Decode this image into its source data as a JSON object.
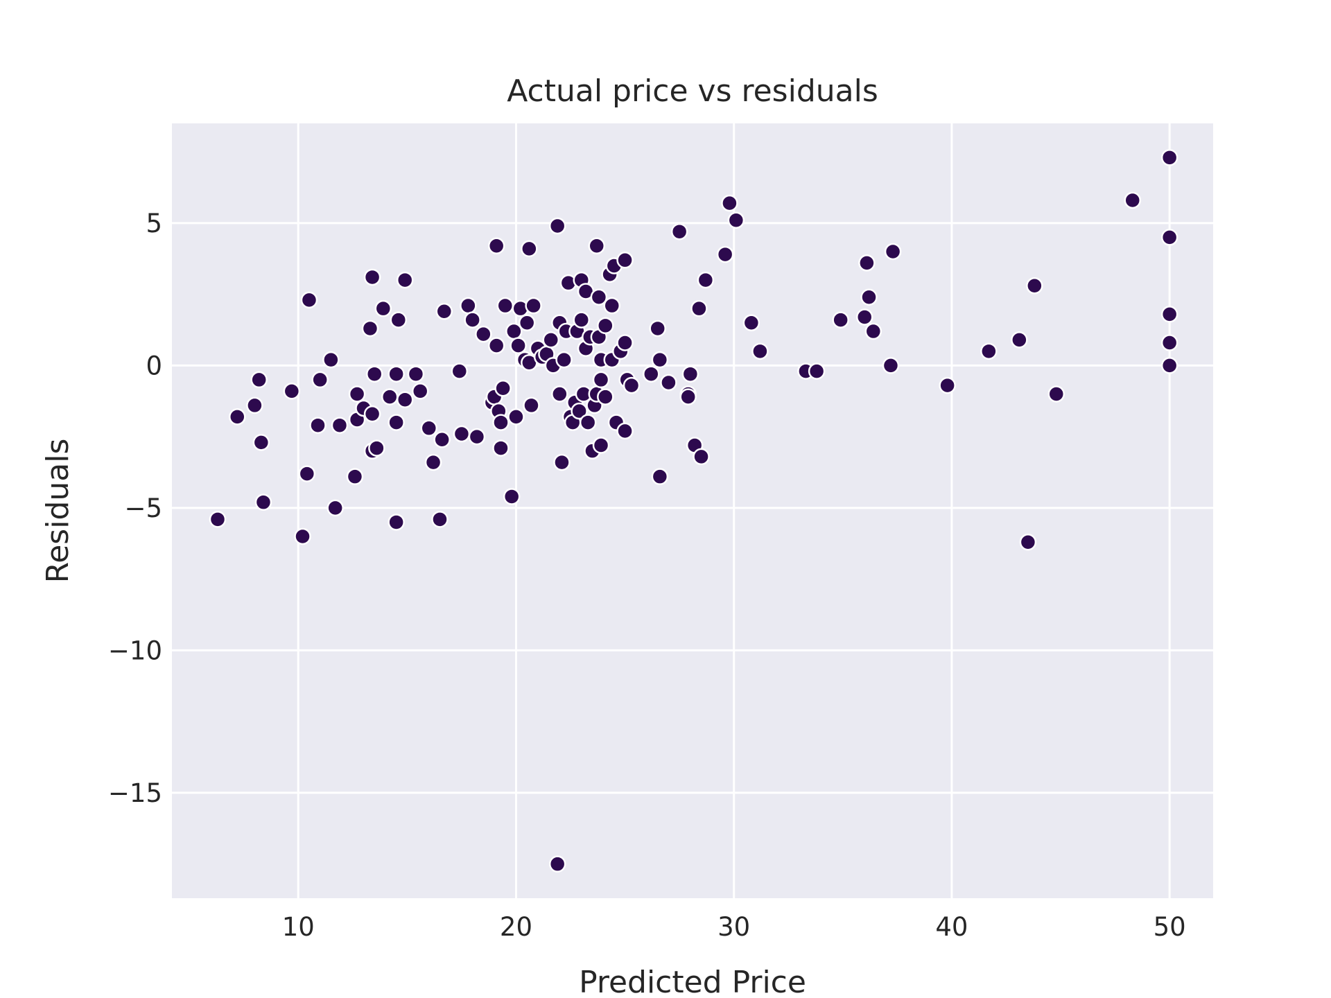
{
  "chart_data": {
    "type": "scatter",
    "title": "Actual price vs residuals",
    "xlabel": "Predicted Price",
    "ylabel": "Residuals",
    "xlim": [
      4.2,
      52.0
    ],
    "ylim": [
      -18.7,
      8.5
    ],
    "xticks": [
      10,
      20,
      30,
      40,
      50
    ],
    "xtick_labels": [
      "10",
      "20",
      "30",
      "40",
      "50"
    ],
    "yticks": [
      5,
      0,
      -5,
      -10,
      -15
    ],
    "ytick_labels": [
      "5",
      "0",
      "−5",
      "−10",
      "−15"
    ],
    "grid": true,
    "colors": {
      "background": "#eaeaf2",
      "grid": "#ffffff",
      "point_fill": "#2d0a4e",
      "point_edge": "#ffffff",
      "text": "#262626"
    },
    "points": [
      [
        6.3,
        -5.4
      ],
      [
        7.2,
        -1.8
      ],
      [
        8.0,
        -1.4
      ],
      [
        8.2,
        -0.5
      ],
      [
        8.3,
        -2.7
      ],
      [
        8.4,
        -4.8
      ],
      [
        9.7,
        -0.9
      ],
      [
        10.2,
        -6.0
      ],
      [
        10.4,
        -3.8
      ],
      [
        10.5,
        2.3
      ],
      [
        10.9,
        -2.1
      ],
      [
        11.0,
        -0.5
      ],
      [
        11.5,
        0.2
      ],
      [
        11.7,
        -5.0
      ],
      [
        11.9,
        -2.1
      ],
      [
        12.6,
        -3.9
      ],
      [
        12.7,
        -1.0
      ],
      [
        12.7,
        -1.9
      ],
      [
        13.0,
        -1.5
      ],
      [
        13.3,
        1.3
      ],
      [
        13.4,
        -1.7
      ],
      [
        13.4,
        -3.0
      ],
      [
        13.4,
        3.1
      ],
      [
        13.5,
        -0.3
      ],
      [
        13.6,
        -2.9
      ],
      [
        13.9,
        2.0
      ],
      [
        14.2,
        -1.1
      ],
      [
        14.5,
        -0.3
      ],
      [
        14.5,
        -2.0
      ],
      [
        14.5,
        -5.5
      ],
      [
        14.6,
        1.6
      ],
      [
        14.9,
        -1.2
      ],
      [
        14.9,
        3.0
      ],
      [
        15.4,
        -0.3
      ],
      [
        15.6,
        -0.9
      ],
      [
        16.0,
        -2.2
      ],
      [
        16.2,
        -3.4
      ],
      [
        16.5,
        -5.4
      ],
      [
        16.6,
        -2.6
      ],
      [
        16.7,
        1.9
      ],
      [
        17.4,
        -0.2
      ],
      [
        17.5,
        -2.4
      ],
      [
        17.8,
        2.1
      ],
      [
        18.0,
        1.6
      ],
      [
        18.2,
        -2.5
      ],
      [
        18.5,
        1.1
      ],
      [
        18.9,
        -1.3
      ],
      [
        19.0,
        -1.1
      ],
      [
        19.1,
        0.7
      ],
      [
        19.1,
        4.2
      ],
      [
        19.2,
        -1.6
      ],
      [
        19.3,
        -2.0
      ],
      [
        19.3,
        -2.9
      ],
      [
        19.4,
        -0.8
      ],
      [
        19.5,
        2.1
      ],
      [
        19.8,
        -4.6
      ],
      [
        19.9,
        1.2
      ],
      [
        20.0,
        -1.8
      ],
      [
        20.1,
        0.7
      ],
      [
        20.2,
        2.0
      ],
      [
        20.4,
        0.2
      ],
      [
        20.5,
        1.5
      ],
      [
        20.6,
        4.1
      ],
      [
        20.6,
        0.1
      ],
      [
        20.7,
        -1.4
      ],
      [
        20.8,
        2.1
      ],
      [
        21.0,
        0.6
      ],
      [
        21.2,
        0.3
      ],
      [
        21.4,
        0.4
      ],
      [
        21.6,
        0.9
      ],
      [
        21.7,
        0.0
      ],
      [
        21.9,
        4.9
      ],
      [
        22.0,
        1.5
      ],
      [
        22.0,
        -1.0
      ],
      [
        22.1,
        -3.4
      ],
      [
        22.2,
        0.2
      ],
      [
        22.3,
        1.2
      ],
      [
        22.4,
        2.9
      ],
      [
        22.5,
        -1.8
      ],
      [
        22.6,
        -2.0
      ],
      [
        22.7,
        -1.3
      ],
      [
        22.8,
        1.2
      ],
      [
        22.9,
        -1.6
      ],
      [
        23.0,
        1.6
      ],
      [
        23.0,
        3.0
      ],
      [
        23.1,
        -1.0
      ],
      [
        23.2,
        0.6
      ],
      [
        23.2,
        2.6
      ],
      [
        23.3,
        -2.0
      ],
      [
        23.4,
        1.0
      ],
      [
        23.5,
        -3.0
      ],
      [
        23.6,
        -1.4
      ],
      [
        23.7,
        4.2
      ],
      [
        23.7,
        -1.0
      ],
      [
        23.8,
        1.0
      ],
      [
        23.8,
        2.4
      ],
      [
        23.9,
        -0.5
      ],
      [
        23.9,
        -2.8
      ],
      [
        23.9,
        0.2
      ],
      [
        24.1,
        1.4
      ],
      [
        24.1,
        -1.1
      ],
      [
        24.3,
        3.2
      ],
      [
        24.4,
        0.2
      ],
      [
        24.4,
        2.1
      ],
      [
        24.5,
        3.5
      ],
      [
        24.6,
        -2.0
      ],
      [
        24.8,
        0.5
      ],
      [
        25.0,
        0.8
      ],
      [
        25.0,
        3.7
      ],
      [
        25.0,
        -2.3
      ],
      [
        25.1,
        -0.5
      ],
      [
        25.3,
        -0.7
      ],
      [
        26.2,
        -0.3
      ],
      [
        26.5,
        1.3
      ],
      [
        26.6,
        0.2
      ],
      [
        26.6,
        -3.9
      ],
      [
        27.0,
        -0.6
      ],
      [
        27.5,
        4.7
      ],
      [
        27.9,
        -1.0
      ],
      [
        27.9,
        -1.1
      ],
      [
        28.0,
        -0.3
      ],
      [
        28.2,
        -2.8
      ],
      [
        28.4,
        2.0
      ],
      [
        28.5,
        -3.2
      ],
      [
        28.7,
        3.0
      ],
      [
        29.6,
        3.9
      ],
      [
        29.8,
        5.7
      ],
      [
        30.1,
        5.1
      ],
      [
        30.8,
        1.5
      ],
      [
        31.2,
        0.5
      ],
      [
        33.3,
        -0.2
      ],
      [
        33.8,
        -0.2
      ],
      [
        34.9,
        1.6
      ],
      [
        36.0,
        1.7
      ],
      [
        36.1,
        3.6
      ],
      [
        36.2,
        2.4
      ],
      [
        36.4,
        1.2
      ],
      [
        37.2,
        0.0
      ],
      [
        37.3,
        4.0
      ],
      [
        39.8,
        -0.7
      ],
      [
        41.7,
        0.5
      ],
      [
        43.1,
        0.9
      ],
      [
        43.5,
        -6.2
      ],
      [
        43.8,
        2.8
      ],
      [
        44.8,
        -1.0
      ],
      [
        48.3,
        5.8
      ],
      [
        50.0,
        7.3
      ],
      [
        50.0,
        4.5
      ],
      [
        50.0,
        1.8
      ],
      [
        50.0,
        0.8
      ],
      [
        50.0,
        0.0
      ],
      [
        21.9,
        -17.5
      ]
    ]
  }
}
